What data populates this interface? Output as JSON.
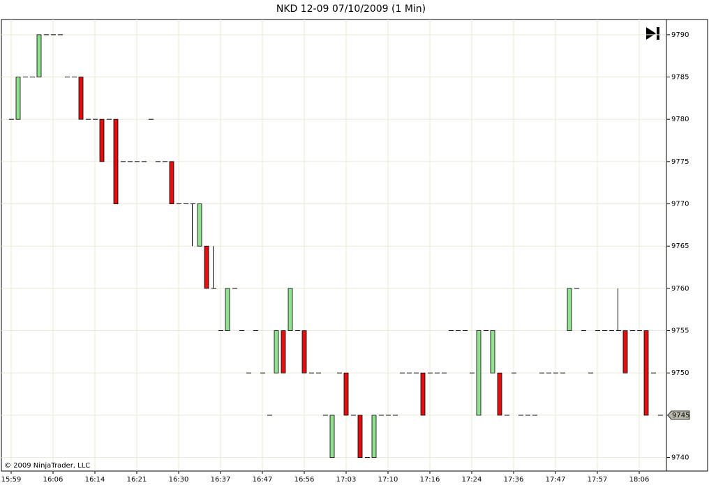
{
  "chart_data": {
    "type": "candlestick",
    "title": "NKD 12-09  07/10/2009 (1 Min)",
    "copyright": "© 2009 NinjaTrader, LLC",
    "categories": [
      "15:59",
      null,
      null,
      null,
      null,
      null,
      "16:06",
      null,
      null,
      null,
      null,
      null,
      "16:14",
      null,
      null,
      null,
      null,
      null,
      "16:21",
      null,
      null,
      null,
      null,
      null,
      "16:30",
      null,
      null,
      null,
      null,
      null,
      "16:37",
      null,
      null,
      null,
      null,
      null,
      "16:47",
      null,
      null,
      null,
      null,
      null,
      "16:56",
      null,
      null,
      null,
      null,
      null,
      "17:03",
      null,
      null,
      null,
      null,
      null,
      "17:10",
      null,
      null,
      null,
      null,
      null,
      "17:16",
      null,
      null,
      null,
      null,
      null,
      "17:24",
      null,
      null,
      null,
      null,
      null,
      "17:36",
      null,
      null,
      null,
      null,
      null,
      "17:47",
      null,
      null,
      null,
      null,
      null,
      "17:57",
      null,
      null,
      null,
      null,
      null,
      "18:06",
      null,
      null,
      null
    ],
    "open": [
      9780,
      9780,
      9785,
      9785,
      9785,
      9790,
      9790,
      9790,
      9785,
      9785,
      9785,
      9780,
      9780,
      9780,
      9780,
      9780,
      9775,
      9775,
      9775,
      9775,
      9780,
      9775,
      9775,
      9775,
      9770,
      9770,
      9770,
      9765,
      9765,
      9760,
      9755,
      9755,
      9760,
      9755,
      9750,
      9755,
      9750,
      9745,
      9750,
      9755,
      9755,
      9755,
      9755,
      9750,
      9750,
      9745,
      9740,
      9750,
      9750,
      9745,
      9745,
      9740,
      9740,
      9745,
      9745,
      9745,
      9750,
      9750,
      9750,
      9750,
      9750,
      9750,
      9750,
      9755,
      9755,
      9755,
      9750,
      9745,
      9755,
      9750,
      9750,
      9745,
      9750,
      9745,
      9745,
      9745,
      9750,
      9750,
      9750,
      9750,
      9755,
      9760,
      9755,
      9750,
      9755,
      9755,
      9755,
      9755,
      9755,
      9755,
      9755,
      9755,
      9750,
      9745
    ],
    "high": [
      9780,
      9785,
      9785,
      9785,
      9790,
      9790,
      9790,
      9790,
      9785,
      9785,
      9785,
      9780,
      9780,
      9780,
      9780,
      9780,
      9775,
      9775,
      9775,
      9775,
      9780,
      9775,
      9775,
      9775,
      9770,
      9770,
      9770,
      9770,
      9765,
      9765,
      9755,
      9760,
      9760,
      9755,
      9750,
      9755,
      9750,
      9745,
      9755,
      9755,
      9760,
      9755,
      9755,
      9750,
      9750,
      9745,
      9745,
      9750,
      9750,
      9745,
      9745,
      9740,
      9745,
      9745,
      9745,
      9745,
      9750,
      9750,
      9750,
      9750,
      9750,
      9750,
      9750,
      9755,
      9755,
      9755,
      9750,
      9755,
      9755,
      9755,
      9750,
      9745,
      9750,
      9745,
      9745,
      9745,
      9750,
      9750,
      9750,
      9750,
      9760,
      9760,
      9755,
      9750,
      9755,
      9755,
      9755,
      9760,
      9755,
      9755,
      9755,
      9755,
      9750,
      9745
    ],
    "low": [
      9780,
      9780,
      9785,
      9785,
      9785,
      9790,
      9790,
      9790,
      9785,
      9785,
      9780,
      9780,
      9780,
      9775,
      9780,
      9770,
      9775,
      9775,
      9775,
      9775,
      9780,
      9775,
      9775,
      9770,
      9770,
      9770,
      9765,
      9765,
      9760,
      9760,
      9755,
      9755,
      9760,
      9755,
      9750,
      9755,
      9750,
      9745,
      9750,
      9750,
      9755,
      9755,
      9750,
      9750,
      9750,
      9745,
      9740,
      9750,
      9745,
      9745,
      9740,
      9740,
      9740,
      9745,
      9745,
      9745,
      9750,
      9750,
      9750,
      9745,
      9750,
      9750,
      9750,
      9755,
      9755,
      9755,
      9750,
      9745,
      9755,
      9750,
      9745,
      9745,
      9750,
      9745,
      9745,
      9745,
      9750,
      9750,
      9750,
      9750,
      9755,
      9760,
      9755,
      9750,
      9755,
      9755,
      9755,
      9755,
      9750,
      9755,
      9755,
      9745,
      9750,
      9745
    ],
    "close": [
      9780,
      9785,
      9785,
      9785,
      9790,
      9790,
      9790,
      9790,
      9785,
      9785,
      9780,
      9780,
      9780,
      9775,
      9780,
      9770,
      9775,
      9775,
      9775,
      9775,
      9780,
      9775,
      9775,
      9770,
      9770,
      9770,
      9770,
      9770,
      9760,
      9760,
      9755,
      9760,
      9760,
      9755,
      9750,
      9755,
      9750,
      9745,
      9755,
      9750,
      9760,
      9755,
      9750,
      9750,
      9750,
      9745,
      9745,
      9750,
      9745,
      9745,
      9740,
      9740,
      9745,
      9745,
      9745,
      9745,
      9750,
      9750,
      9750,
      9745,
      9750,
      9750,
      9750,
      9755,
      9755,
      9755,
      9750,
      9755,
      9755,
      9755,
      9745,
      9745,
      9750,
      9745,
      9745,
      9745,
      9750,
      9750,
      9750,
      9750,
      9760,
      9760,
      9755,
      9750,
      9755,
      9755,
      9755,
      9755,
      9750,
      9755,
      9755,
      9745,
      9750,
      9745
    ],
    "up_color": "#90e090",
    "down_color": "#e01010",
    "doji_color": "#000000",
    "last_price": 9745,
    "ylim": [
      9738.4,
      9791.8
    ],
    "yticks": [
      9740,
      9745,
      9750,
      9755,
      9760,
      9765,
      9770,
      9775,
      9780,
      9785,
      9790
    ],
    "grid": true
  }
}
